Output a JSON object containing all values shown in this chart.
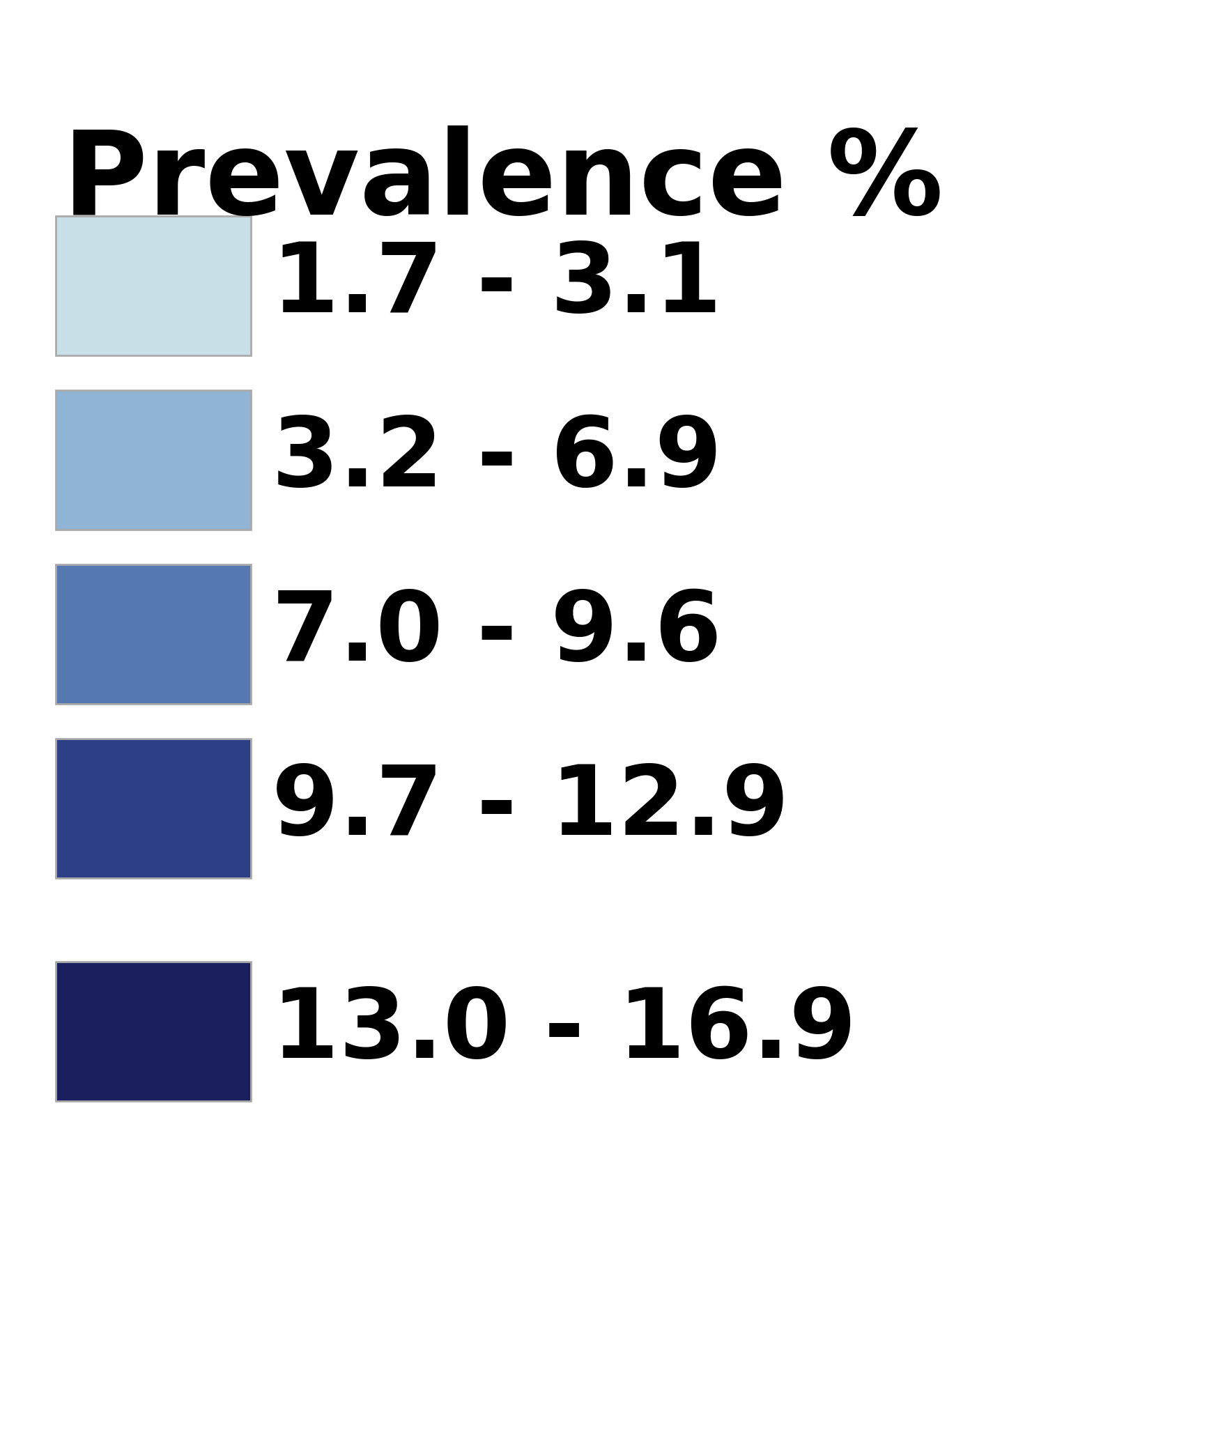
{
  "title": "Prevalence %",
  "title_fontsize": 120,
  "title_fontweight": "bold",
  "background_color": "#ffffff",
  "legend_items": [
    {
      "color": "#c8dfe8",
      "label": "1.7 - 3.1"
    },
    {
      "color": "#8fb4d4",
      "label": "3.2 - 6.9"
    },
    {
      "color": "#5578b0",
      "label": "7.0 - 9.6"
    },
    {
      "color": "#2d3f87",
      "label": "9.7 - 12.9"
    },
    {
      "color": "#1a1f5e",
      "label": "13.0 - 16.9"
    }
  ],
  "label_fontsize": 100,
  "label_fontweight": "bold",
  "label_color": "#000000",
  "edge_color": "#aaaaaa",
  "edge_linewidth": 2.0,
  "fig_width": 17.68,
  "fig_height": 20.52
}
